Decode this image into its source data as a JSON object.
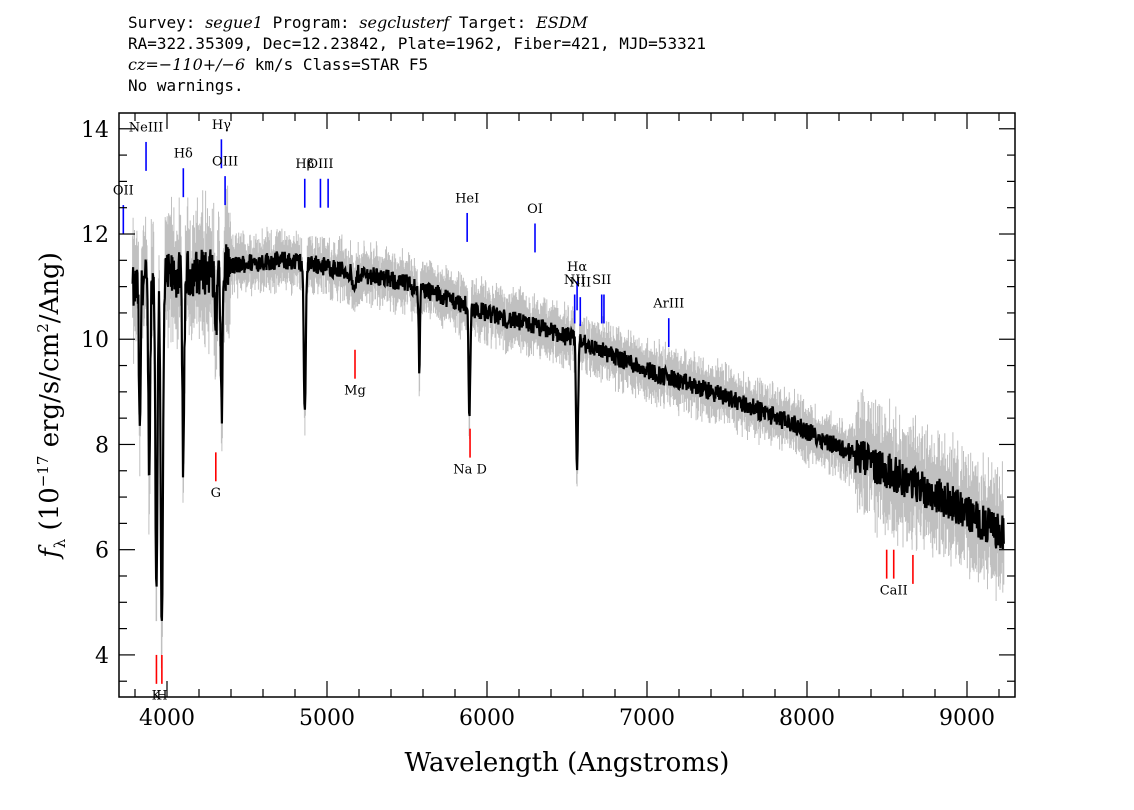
{
  "header": {
    "line1": {
      "survey_label": "Survey: ",
      "survey": "segue1",
      "program_label": " Program: ",
      "program": "segclusterf",
      "target_label": " Target: ",
      "target": "ESDM"
    },
    "line2": "RA=322.35309, Dec=12.23842, Plate=1962, Fiber=421, MJD=53321",
    "line3": {
      "cz": "cz=−110+/−6",
      "rest": " km/s Class=STAR F5"
    },
    "line4": "No warnings."
  },
  "colors": {
    "flux": "#000000",
    "error_band": "#c0c0c0",
    "emission_line": "#0000ff",
    "absorption_line": "#ff0000",
    "frame": "#000000"
  },
  "chart_data": {
    "type": "line",
    "title": "",
    "xlabel": "Wavelength (Angstroms)",
    "ylabel": "fλ (10⁻¹⁷ erg/s/cm²/Ang)",
    "xlim": [
      3700,
      9300
    ],
    "ylim": [
      3.2,
      14.3
    ],
    "x_ticks": [
      4000,
      5000,
      6000,
      7000,
      8000,
      9000
    ],
    "y_ticks": [
      4,
      6,
      8,
      10,
      12,
      14
    ],
    "continuum": [
      [
        3780,
        10.9
      ],
      [
        3850,
        11.1
      ],
      [
        3950,
        11.15
      ],
      [
        4050,
        11.2
      ],
      [
        4150,
        11.25
      ],
      [
        4250,
        11.3
      ],
      [
        4350,
        11.35
      ],
      [
        4500,
        11.45
      ],
      [
        4700,
        11.5
      ],
      [
        4900,
        11.45
      ],
      [
        5100,
        11.3
      ],
      [
        5300,
        11.2
      ],
      [
        5500,
        11.05
      ],
      [
        5700,
        10.85
      ],
      [
        5900,
        10.6
      ],
      [
        6100,
        10.4
      ],
      [
        6300,
        10.25
      ],
      [
        6500,
        10.05
      ],
      [
        6700,
        9.8
      ],
      [
        6900,
        9.55
      ],
      [
        7100,
        9.3
      ],
      [
        7300,
        9.1
      ],
      [
        7500,
        8.9
      ],
      [
        7700,
        8.65
      ],
      [
        7900,
        8.4
      ],
      [
        8100,
        8.1
      ],
      [
        8300,
        7.8
      ],
      [
        8500,
        7.5
      ],
      [
        8700,
        7.2
      ],
      [
        8900,
        6.9
      ],
      [
        9100,
        6.5
      ],
      [
        9230,
        6.3
      ]
    ],
    "absorption_features": [
      {
        "center": 3830,
        "depth": 3.0,
        "width": 5
      },
      {
        "center": 3889,
        "depth": 3.5,
        "width": 6
      },
      {
        "center": 3934,
        "depth": 6.2,
        "width": 6
      },
      {
        "center": 3968,
        "depth": 6.8,
        "width": 7
      },
      {
        "center": 4102,
        "depth": 3.6,
        "width": 6
      },
      {
        "center": 4305,
        "depth": 1.0,
        "width": 8
      },
      {
        "center": 4341,
        "depth": 2.8,
        "width": 6
      },
      {
        "center": 4861,
        "depth": 3.0,
        "width": 6
      },
      {
        "center": 5170,
        "depth": 0.4,
        "width": 10
      },
      {
        "center": 5577,
        "depth": 1.6,
        "width": 4
      },
      {
        "center": 5890,
        "depth": 2.2,
        "width": 5
      },
      {
        "center": 6563,
        "depth": 2.4,
        "width": 6
      }
    ],
    "emission_lines": [
      {
        "label": "OII",
        "wavelength": 3727,
        "top": 12.55,
        "bottom": 12.0,
        "label_y": 12.75
      },
      {
        "label": "NeIII",
        "wavelength": 3869,
        "top": 13.75,
        "bottom": 13.2,
        "label_y": 13.95
      },
      {
        "label": "Hδ",
        "wavelength": 4102,
        "top": 13.25,
        "bottom": 12.7,
        "label_y": 13.45
      },
      {
        "label": "Hγ",
        "wavelength": 4340,
        "top": 13.8,
        "bottom": 13.25,
        "label_y": 14.0
      },
      {
        "label": "OIII",
        "wavelength": 4363,
        "top": 13.1,
        "bottom": 12.55,
        "label_y": 13.3
      },
      {
        "label": "Hβ",
        "wavelength": 4861,
        "top": 13.05,
        "bottom": 12.5,
        "label_y": 13.25
      },
      {
        "label": "OIII",
        "wavelength": 4959,
        "top": 13.05,
        "bottom": 12.5,
        "label_y": 13.25
      },
      {
        "label": "",
        "wavelength": 5007,
        "top": 13.05,
        "bottom": 12.5,
        "label_y": 13.25
      },
      {
        "label": "HeI",
        "wavelength": 5876,
        "top": 12.4,
        "bottom": 11.85,
        "label_y": 12.6
      },
      {
        "label": "OI",
        "wavelength": 6300,
        "top": 12.2,
        "bottom": 11.65,
        "label_y": 12.4
      },
      {
        "label": "NII",
        "wavelength": 6548,
        "top": 10.85,
        "bottom": 10.3,
        "label_y": 11.05
      },
      {
        "label": "Hα",
        "wavelength": 6563,
        "top": 11.1,
        "bottom": 10.55,
        "label_y": 11.3
      },
      {
        "label": "NII",
        "wavelength": 6583,
        "top": 10.8,
        "bottom": 10.25,
        "label_y": 11.0
      },
      {
        "label": "SII",
        "wavelength": 6717,
        "top": 10.85,
        "bottom": 10.3,
        "label_y": 11.05
      },
      {
        "label": "",
        "wavelength": 6731,
        "top": 10.85,
        "bottom": 10.3,
        "label_y": 11.05
      },
      {
        "label": "ArIII",
        "wavelength": 7136,
        "top": 10.4,
        "bottom": 9.85,
        "label_y": 10.6
      }
    ],
    "absorption_lines": [
      {
        "label": "K",
        "wavelength": 3934,
        "top": 4.0,
        "bottom": 3.45,
        "label_y": 3.15
      },
      {
        "label": "H",
        "wavelength": 3968,
        "top": 4.0,
        "bottom": 3.45,
        "label_y": 3.15
      },
      {
        "label": "G",
        "wavelength": 4305,
        "top": 7.85,
        "bottom": 7.3,
        "label_y": 7.0
      },
      {
        "label": "Mg",
        "wavelength": 5175,
        "top": 9.8,
        "bottom": 9.25,
        "label_y": 8.95
      },
      {
        "label": "Na D",
        "wavelength": 5894,
        "top": 8.3,
        "bottom": 7.75,
        "label_y": 7.45
      },
      {
        "label": "",
        "wavelength": 8498,
        "top": 6.0,
        "bottom": 5.45,
        "label_y": 5.15
      },
      {
        "label": "CaII",
        "wavelength": 8542,
        "top": 6.0,
        "bottom": 5.45,
        "label_y": 5.15
      },
      {
        "label": "",
        "wavelength": 8662,
        "top": 5.9,
        "bottom": 5.35,
        "label_y": 5.05
      }
    ]
  }
}
